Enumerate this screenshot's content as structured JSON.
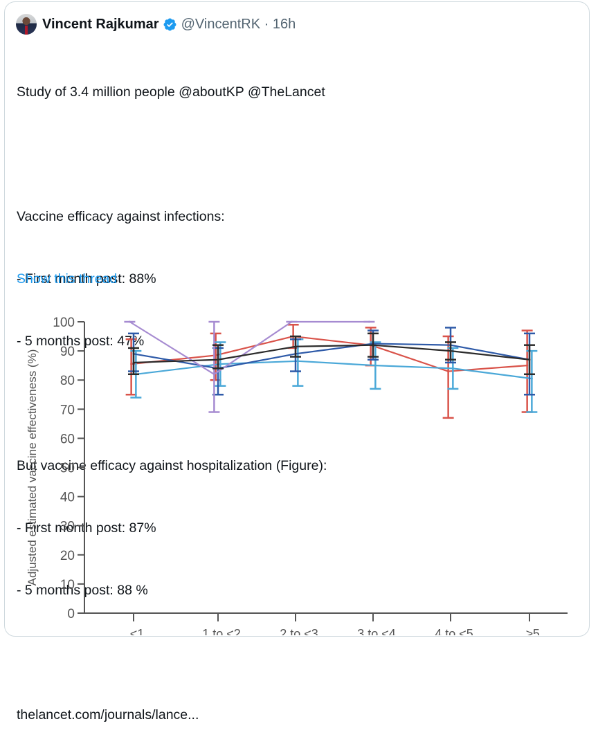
{
  "tweet": {
    "author_name": "Vincent Rajkumar",
    "verified": true,
    "handle": "@VincentRK",
    "separator": "·",
    "time": "16h",
    "lines": [
      "Study of 3.4 million people @aboutKP @TheLancet",
      "",
      "Vaccine efficacy against infections:",
      "- First month post: 88%",
      "- 5 months post: 47%",
      "",
      "But vaccine efficacy against hospitalization (Figure):",
      "- First month post: 87%",
      "- 5 months post: 88 %",
      "",
      "thelancet.com/journals/lance..."
    ],
    "show_thread": "Show this thread",
    "colors": {
      "link": "#1d9bf0",
      "verified": "#1d9bf0",
      "text": "#0f1419",
      "muted": "#536471"
    }
  },
  "icons": {
    "avatar": "user-avatar",
    "verified": "verified-badge-icon"
  },
  "chart_data": {
    "type": "line",
    "title": "",
    "xlabel": "",
    "ylabel": "Adjusted estimated vaccine effectiveness (%)",
    "ylim": [
      0,
      100
    ],
    "yticks": [
      0,
      10,
      20,
      30,
      40,
      50,
      60,
      70,
      80,
      90,
      100
    ],
    "categories": [
      "<1",
      "1 to <2",
      "2 to <3",
      "3 to <4",
      "4 to <5",
      "≥5"
    ],
    "error_bars": true,
    "grid": false,
    "series": [
      {
        "name": "red",
        "color": "#d9534a",
        "offset": -0.03,
        "values": [
          85.5,
          88.5,
          95,
          92,
          83,
          85
        ],
        "ci_low": [
          75,
          80,
          91,
          85,
          67,
          69
        ],
        "ci_high": [
          94,
          96,
          99,
          98,
          95,
          97
        ]
      },
      {
        "name": "light-blue",
        "color": "#4aa8d8",
        "offset": 0.03,
        "values": [
          82,
          85.5,
          86.5,
          85,
          84,
          80.5
        ],
        "ci_low": [
          74,
          78,
          78,
          77,
          77,
          69
        ],
        "ci_high": [
          90,
          93,
          94,
          93,
          91,
          90
        ]
      },
      {
        "name": "dark-blue",
        "color": "#2e5aa8",
        "offset": 0.0,
        "values": [
          89,
          84,
          89,
          92.5,
          92,
          87
        ],
        "ci_low": [
          83,
          75,
          83,
          87,
          86,
          75
        ],
        "ci_high": [
          96,
          91,
          94,
          97,
          98,
          96
        ]
      },
      {
        "name": "purple",
        "color": "#a68bd1",
        "offset": -0.05,
        "values": [
          100,
          82,
          100,
          100,
          null,
          null
        ],
        "ci_low": [
          100,
          69,
          100,
          100,
          null,
          null
        ],
        "ci_high": [
          100,
          100,
          100,
          100,
          null,
          null
        ]
      },
      {
        "name": "black",
        "color": "#2b2b2b",
        "offset": 0.0,
        "values": [
          86,
          87,
          91.5,
          92,
          90,
          87
        ],
        "ci_low": [
          82,
          84,
          88,
          88,
          87,
          82
        ],
        "ci_high": [
          91,
          92,
          95,
          96,
          93,
          92
        ]
      }
    ]
  }
}
